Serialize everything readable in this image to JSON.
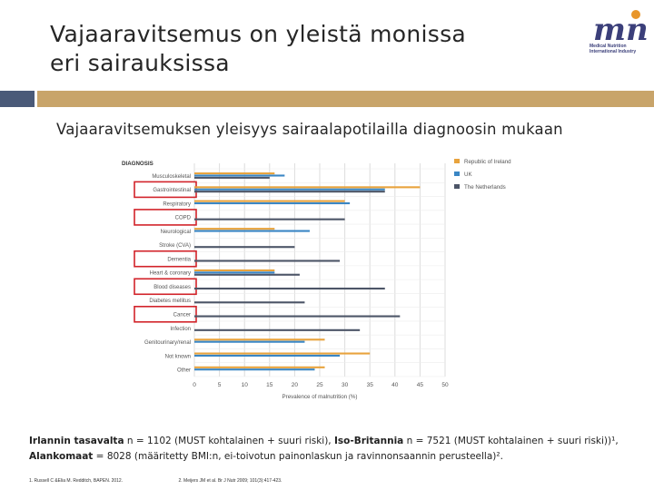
{
  "slide": {
    "title_line1": "Vajaaravitsemus on yleistä monissa",
    "title_line2": "eri sairauksissa",
    "subtitle": "Vajaaravitsemuksen yleisyys sairaalapotilailla diagnoosin mukaan",
    "logo": {
      "mark": "mni",
      "line1": "Medical Nutrition",
      "line2": "International Industry",
      "color": "#3b3f7a",
      "accent": "#e8962b"
    },
    "accent_colors": {
      "block": "#4a5a78",
      "bar": "#c8a46a"
    }
  },
  "footnote": {
    "ireland_label": "Irlannin tasavalta",
    "ireland_text": " n = 1102 (MUST kohtalainen + suuri riski), ",
    "uk_label": "Iso-Britannia",
    "uk_text": " n = 7521 (MUST kohtalainen + suuri riski))¹,",
    "nl_label": "Alankomaat",
    "nl_text": " = 8028 (määritetty BMI:n, ei-toivotun painonlaskun ja ravinnonsaannin perusteella)².",
    "ref1": "1. Russell C &Elia M. Redditch, BAPEN. 2012.",
    "ref2": "2. Meijers JM et al. Br J Nutr 2009; 101(3):417-423."
  },
  "chart_data": {
    "type": "bar",
    "orientation": "horizontal",
    "category_header": "DIAGNOSIS",
    "categories": [
      "Musculoskeletal",
      "Gastrointestinal",
      "Respiratory",
      "COPD",
      "Neurological",
      "Stroke (CVA)",
      "Dementia",
      "Heart & coronary",
      "Blood diseases",
      "Diabetes mellitus",
      "Cancer",
      "Infection",
      "Genitourinary/renal",
      "Not known",
      "Other"
    ],
    "series": [
      {
        "name": "Republic of Ireland",
        "color": "#e8a33d",
        "values": [
          16,
          45,
          30,
          null,
          16,
          null,
          null,
          16,
          null,
          null,
          null,
          null,
          26,
          35,
          26
        ]
      },
      {
        "name": "UK",
        "color": "#3a86c4",
        "values": [
          18,
          38,
          31,
          null,
          23,
          null,
          null,
          16,
          null,
          null,
          null,
          null,
          22,
          29,
          24
        ]
      },
      {
        "name": "The Netherlands",
        "color": "#4c5567",
        "values": [
          15,
          38,
          null,
          30,
          null,
          20,
          29,
          21,
          38,
          22,
          41,
          33,
          null,
          null,
          null
        ]
      }
    ],
    "highlighted": [
      "Gastrointestinal",
      "COPD",
      "Dementia",
      "Blood diseases",
      "Cancer"
    ],
    "highlight_color": "#d2232a",
    "xlabel": "Prevalence of malnutrition (%)",
    "xticks": [
      0,
      5,
      10,
      15,
      20,
      25,
      30,
      35,
      40,
      45,
      50
    ],
    "xlim": [
      0,
      50
    ],
    "grid": true,
    "legend_position": "top-right"
  }
}
